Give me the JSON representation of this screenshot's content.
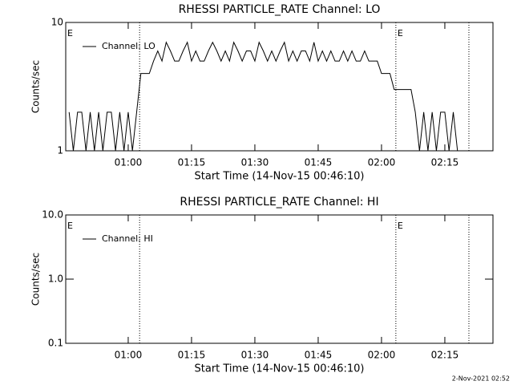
{
  "chart_data": [
    {
      "type": "line",
      "title": "RHESSI PARTICLE_RATE Channel: LO",
      "xlabel": "Start Time (14-Nov-15 00:46:10)",
      "ylabel": "Counts/sec",
      "log_y": true,
      "ylim": [
        1,
        10
      ],
      "yticks": [
        1,
        10
      ],
      "xlim": [
        45.2,
        146.4
      ],
      "xticks": [
        {
          "value": 60,
          "label": "01:00"
        },
        {
          "value": 75,
          "label": "01:15"
        },
        {
          "value": 90,
          "label": "01:30"
        },
        {
          "value": 105,
          "label": "01:45"
        },
        {
          "value": 120,
          "label": "02:00"
        },
        {
          "value": 135,
          "label": "02:15"
        }
      ],
      "vlines": [
        62.7,
        123.4,
        140.7
      ],
      "annotations": [
        {
          "text": "E",
          "x": 45.2
        },
        {
          "text": "E",
          "x": 123.4
        }
      ],
      "legend": "upper left",
      "x": [
        46,
        47,
        48,
        49,
        50,
        51,
        52,
        53,
        54,
        55,
        56,
        57,
        58,
        59,
        60,
        61,
        62,
        63,
        64,
        65,
        66,
        67,
        68,
        69,
        70,
        71,
        72,
        73,
        74,
        75,
        76,
        77,
        78,
        79,
        80,
        81,
        82,
        83,
        84,
        85,
        86,
        87,
        88,
        89,
        90,
        91,
        92,
        93,
        94,
        95,
        96,
        97,
        98,
        99,
        100,
        101,
        102,
        103,
        104,
        105,
        106,
        107,
        108,
        109,
        110,
        111,
        112,
        113,
        114,
        115,
        116,
        117,
        118,
        119,
        120,
        121,
        122,
        123,
        124,
        125,
        126,
        127,
        128,
        129,
        130,
        131,
        132,
        133,
        134,
        135,
        136,
        137,
        138,
        139
      ],
      "series": [
        {
          "name": "Channel: LO",
          "color": "#000000",
          "values": [
            2,
            1,
            2,
            2,
            1,
            2,
            1,
            2,
            1,
            2,
            2,
            1,
            2,
            1,
            2,
            1,
            2,
            4,
            4,
            4,
            5,
            6,
            5,
            7,
            6,
            5,
            5,
            6,
            7,
            5,
            6,
            5,
            5,
            6,
            7,
            6,
            5,
            6,
            5,
            7,
            6,
            5,
            6,
            6,
            5,
            7,
            6,
            5,
            6,
            5,
            6,
            7,
            5,
            6,
            5,
            6,
            6,
            5,
            7,
            5,
            6,
            5,
            6,
            5,
            5,
            6,
            5,
            6,
            5,
            5,
            6,
            5,
            5,
            5,
            4,
            4,
            4,
            3,
            3,
            3,
            3,
            3,
            2,
            1,
            2,
            1,
            2,
            1,
            2,
            2,
            1,
            2,
            1,
            1
          ]
        }
      ]
    },
    {
      "type": "line",
      "title": "RHESSI PARTICLE_RATE Channel: HI",
      "xlabel": "Start Time (14-Nov-15 00:46:10)",
      "ylabel": "Counts/sec",
      "log_y": true,
      "ylim": [
        0.1,
        10
      ],
      "yticks": [
        {
          "value": 0.1,
          "label": "0.1"
        },
        {
          "value": 1,
          "label": "1.0"
        },
        {
          "value": 10,
          "label": "10.0"
        }
      ],
      "xlim": [
        45.2,
        146.4
      ],
      "xticks": [
        {
          "value": 60,
          "label": "01:00"
        },
        {
          "value": 75,
          "label": "01:15"
        },
        {
          "value": 90,
          "label": "01:30"
        },
        {
          "value": 105,
          "label": "01:45"
        },
        {
          "value": 120,
          "label": "02:00"
        },
        {
          "value": 135,
          "label": "02:15"
        }
      ],
      "vlines": [
        62.7,
        123.4,
        140.7
      ],
      "annotations": [
        {
          "text": "E",
          "x": 45.2
        },
        {
          "text": "E",
          "x": 123.4
        }
      ],
      "legend": "upper left",
      "x": [],
      "series": [
        {
          "name": "Channel: HI",
          "color": "#000000",
          "values": []
        }
      ]
    }
  ],
  "footer": "2-Nov-2021 02:52"
}
